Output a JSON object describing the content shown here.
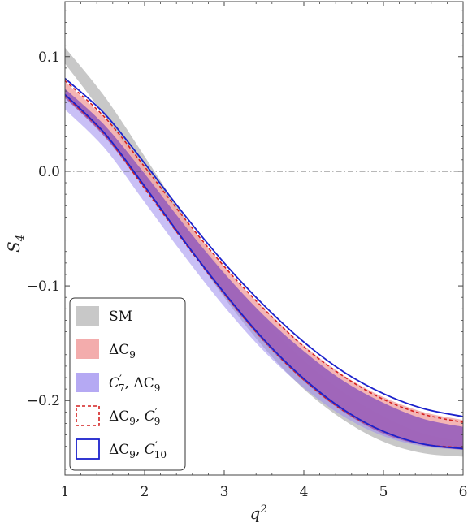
{
  "chart_data": {
    "type": "area",
    "xlabel": "q",
    "xlabel_sup": "2",
    "ylabel": "S",
    "ylabel_sub": "4",
    "xlim": [
      1,
      6
    ],
    "ylim": [
      -0.265,
      0.148
    ],
    "x_ticks": [
      1,
      2,
      3,
      4,
      5,
      6
    ],
    "x_tick_labels": [
      "1",
      "2",
      "3",
      "4",
      "5",
      "6"
    ],
    "y_ticks": [
      0.1,
      0.0,
      -0.1,
      -0.2
    ],
    "y_tick_labels": [
      "0.1",
      "0.0",
      "−0.1",
      "−0.2"
    ],
    "reference_line": {
      "y": 0.0,
      "style": "dash-dot"
    },
    "grid": false,
    "legend_position": "bottom-left",
    "colors": {
      "SM": "#c8c8c8",
      "dC9": "#f2a8a8",
      "C7_dC9": "#9c8cef",
      "overlap": "#9a5db6",
      "dC9_C9p": "#d42020",
      "dC9_C10p": "#1c22cc"
    },
    "series": [
      {
        "name": "SM",
        "style": "band",
        "x": [
          1.0,
          1.5,
          2.0,
          2.5,
          3.0,
          3.5,
          4.0,
          4.5,
          5.0,
          5.5,
          6.0
        ],
        "upper": [
          0.108,
          0.065,
          0.013,
          -0.04,
          -0.088,
          -0.13,
          -0.165,
          -0.193,
          -0.214,
          -0.229,
          -0.236
        ],
        "lower": [
          0.094,
          0.048,
          -0.005,
          -0.06,
          -0.11,
          -0.154,
          -0.19,
          -0.217,
          -0.236,
          -0.246,
          -0.249
        ]
      },
      {
        "name": "ΔC9",
        "style": "band",
        "x": [
          1.0,
          1.5,
          2.0,
          2.5,
          3.0,
          3.5,
          4.0,
          4.5,
          5.0,
          5.5,
          6.0
        ],
        "upper": [
          0.078,
          0.046,
          0.004,
          -0.041,
          -0.083,
          -0.12,
          -0.152,
          -0.178,
          -0.197,
          -0.21,
          -0.217
        ],
        "lower": [
          0.064,
          0.03,
          -0.015,
          -0.062,
          -0.108,
          -0.149,
          -0.183,
          -0.21,
          -0.229,
          -0.239,
          -0.243
        ]
      },
      {
        "name": "C7', ΔC9",
        "style": "band",
        "x": [
          1.0,
          1.5,
          2.0,
          2.5,
          3.0,
          3.5,
          4.0,
          4.5,
          5.0,
          5.5,
          6.0
        ],
        "upper": [
          0.072,
          0.04,
          -0.002,
          -0.047,
          -0.089,
          -0.126,
          -0.157,
          -0.183,
          -0.202,
          -0.216,
          -0.223
        ],
        "lower": [
          0.054,
          0.02,
          -0.027,
          -0.074,
          -0.118,
          -0.157,
          -0.189,
          -0.214,
          -0.231,
          -0.24,
          -0.243
        ]
      },
      {
        "name": "ΔC9, C9'",
        "style": "dashed-outline",
        "x": [
          1.0,
          1.5,
          2.0,
          2.5,
          3.0,
          3.5,
          4.0,
          4.5,
          5.0,
          5.5,
          6.0
        ],
        "upper": [
          0.079,
          0.047,
          0.004,
          -0.041,
          -0.083,
          -0.12,
          -0.153,
          -0.179,
          -0.199,
          -0.212,
          -0.219
        ],
        "lower": [
          0.066,
          0.032,
          -0.015,
          -0.062,
          -0.107,
          -0.148,
          -0.182,
          -0.209,
          -0.227,
          -0.238,
          -0.241
        ]
      },
      {
        "name": "ΔC9, C10'",
        "style": "solid-outline",
        "x": [
          1.0,
          1.5,
          2.0,
          2.5,
          3.0,
          3.5,
          4.0,
          4.5,
          5.0,
          5.5,
          6.0
        ],
        "upper": [
          0.081,
          0.05,
          0.007,
          -0.038,
          -0.08,
          -0.117,
          -0.149,
          -0.175,
          -0.194,
          -0.207,
          -0.214
        ],
        "lower": [
          0.067,
          0.033,
          -0.013,
          -0.061,
          -0.106,
          -0.147,
          -0.181,
          -0.208,
          -0.227,
          -0.238,
          -0.242
        ]
      }
    ],
    "legend": [
      {
        "label": "SM",
        "swatch": "fill",
        "color_key": "SM"
      },
      {
        "label": "ΔC",
        "sub": "9",
        "swatch": "fill",
        "color_key": "dC9"
      },
      {
        "label": "C",
        "sub": "7",
        "prime": true,
        "label2": ", ΔC",
        "sub2": "9",
        "swatch": "fill",
        "color_key": "C7_dC9"
      },
      {
        "label": "ΔC",
        "sub": "9",
        "label2": ", C",
        "sub2": "9",
        "prime2": true,
        "swatch": "dashed",
        "color_key": "dC9_C9p"
      },
      {
        "label": "ΔC",
        "sub": "9",
        "label2": ", C",
        "sub2": "10",
        "prime2": true,
        "swatch": "solid",
        "color_key": "dC9_C10p"
      }
    ]
  }
}
